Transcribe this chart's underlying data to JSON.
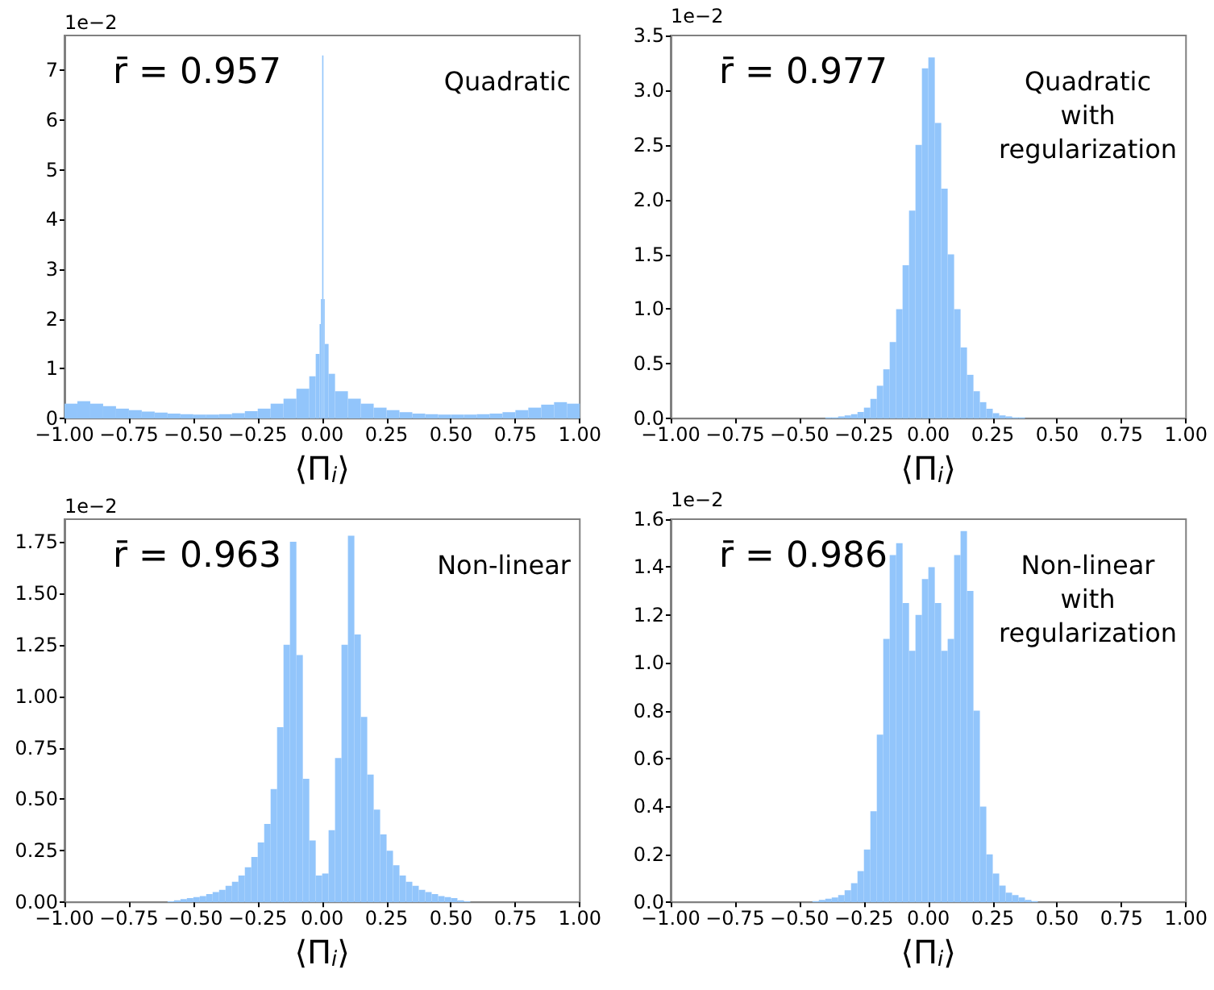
{
  "chart_data": [
    {
      "type": "histogram",
      "annotations": [
        "r̄ = 0.957",
        "Quadratic"
      ],
      "xlabel": "⟨Π$_{i}$⟩",
      "ylabel": "1e−2",
      "color": "#92c5fb",
      "bins": [
        -1,
        -0.95,
        -0.9,
        -0.85,
        -0.8,
        -0.75,
        -0.7,
        -0.65,
        -0.6,
        -0.55,
        -0.5,
        -0.45,
        -0.4,
        -0.35,
        -0.3,
        -0.25,
        -0.2,
        -0.15,
        -0.1,
        -0.05,
        -0.025,
        -0.01,
        -0.005,
        0,
        0.005,
        0.01,
        0.025,
        0.05,
        0.1,
        0.15,
        0.2,
        0.25,
        0.3,
        0.35,
        0.4,
        0.45,
        0.5,
        0.55,
        0.6,
        0.65,
        0.7,
        0.75,
        0.8,
        0.85,
        0.9,
        0.95,
        1
      ],
      "values": [
        0.3,
        0.35,
        0.3,
        0.25,
        0.2,
        0.17,
        0.14,
        0.12,
        0.1,
        0.09,
        0.08,
        0.08,
        0.09,
        0.11,
        0.15,
        0.2,
        0.3,
        0.4,
        0.6,
        0.85,
        1.3,
        1.9,
        2.4,
        7.3,
        2.4,
        1.5,
        0.9,
        0.55,
        0.4,
        0.3,
        0.22,
        0.17,
        0.13,
        0.1,
        0.09,
        0.08,
        0.08,
        0.08,
        0.09,
        0.1,
        0.13,
        0.17,
        0.22,
        0.28,
        0.33,
        0.3
      ],
      "xlim": [
        -1,
        1
      ],
      "xticks": [
        {
          "value": -1,
          "label": "−1.00"
        },
        {
          "value": -0.75,
          "label": "−0.75"
        },
        {
          "value": -0.5,
          "label": "−0.50"
        },
        {
          "value": -0.25,
          "label": "−0.25"
        },
        {
          "value": 0,
          "label": "0.00"
        },
        {
          "value": 0.25,
          "label": "0.25"
        },
        {
          "value": 0.5,
          "label": "0.50"
        },
        {
          "value": 0.75,
          "label": "0.75"
        },
        {
          "value": 1,
          "label": "1.00"
        }
      ],
      "ylim": [
        0,
        7.7
      ],
      "yticks": [
        0,
        1,
        2,
        3,
        4,
        5,
        6,
        7
      ],
      "grid": false
    },
    {
      "type": "histogram",
      "annotations": [
        "r̄ = 0.977",
        "Quadratic\nwith\nregularization"
      ],
      "xlabel": "⟨Π$_{i}$⟩",
      "ylabel": "1e−2",
      "color": "#92c5fb",
      "bins": [
        -0.4,
        -0.375,
        -0.35,
        -0.325,
        -0.3,
        -0.275,
        -0.25,
        -0.225,
        -0.2,
        -0.175,
        -0.15,
        -0.125,
        -0.1,
        -0.075,
        -0.05,
        -0.025,
        0,
        0.025,
        0.05,
        0.075,
        0.1,
        0.125,
        0.15,
        0.175,
        0.2,
        0.225,
        0.25,
        0.275,
        0.3,
        0.325,
        0.35,
        0.375,
        0.4
      ],
      "values": [
        0.01,
        0.01,
        0.02,
        0.03,
        0.04,
        0.06,
        0.1,
        0.18,
        0.3,
        0.45,
        0.7,
        1.0,
        1.4,
        1.9,
        2.5,
        3.2,
        3.3,
        2.7,
        2.1,
        1.5,
        1.0,
        0.65,
        0.4,
        0.25,
        0.15,
        0.09,
        0.05,
        0.03,
        0.02,
        0.01,
        0.01,
        0
      ],
      "xlim": [
        -1,
        1
      ],
      "xticks": [
        {
          "value": -1,
          "label": "−1.00"
        },
        {
          "value": -0.75,
          "label": "−0.75"
        },
        {
          "value": -0.5,
          "label": "−0.50"
        },
        {
          "value": -0.25,
          "label": "−0.25"
        },
        {
          "value": 0,
          "label": "0.00"
        },
        {
          "value": 0.25,
          "label": "0.25"
        },
        {
          "value": 0.5,
          "label": "0.50"
        },
        {
          "value": 0.75,
          "label": "0.75"
        },
        {
          "value": 1,
          "label": "1.00"
        }
      ],
      "ylim": [
        0,
        3.5
      ],
      "yticks": [
        {
          "value": 0,
          "label": "0.0"
        },
        {
          "value": 0.5,
          "label": "0.5"
        },
        {
          "value": 1,
          "label": "1.0"
        },
        {
          "value": 1.5,
          "label": "1.5"
        },
        {
          "value": 2,
          "label": "2.0"
        },
        {
          "value": 2.5,
          "label": "2.5"
        },
        {
          "value": 3,
          "label": "3.0"
        },
        {
          "value": 3.5,
          "label": "3.5"
        }
      ],
      "grid": false
    },
    {
      "type": "histogram",
      "annotations": [
        "r̄ = 0.963",
        "Non-linear"
      ],
      "xlabel": "⟨Π$_{i}$⟩",
      "ylabel": "1e−2",
      "color": "#92c5fb",
      "bins": [
        -0.6,
        -0.575,
        -0.55,
        -0.525,
        -0.5,
        -0.475,
        -0.45,
        -0.425,
        -0.4,
        -0.375,
        -0.35,
        -0.325,
        -0.3,
        -0.275,
        -0.25,
        -0.225,
        -0.2,
        -0.175,
        -0.15,
        -0.125,
        -0.1,
        -0.075,
        -0.05,
        -0.025,
        0,
        0.025,
        0.05,
        0.075,
        0.1,
        0.125,
        0.15,
        0.175,
        0.2,
        0.225,
        0.25,
        0.275,
        0.3,
        0.325,
        0.35,
        0.375,
        0.4,
        0.425,
        0.45,
        0.475,
        0.5,
        0.525,
        0.55,
        0.575,
        0.6
      ],
      "values": [
        0.005,
        0.01,
        0.015,
        0.02,
        0.025,
        0.03,
        0.04,
        0.05,
        0.06,
        0.08,
        0.1,
        0.13,
        0.17,
        0.22,
        0.29,
        0.38,
        0.55,
        0.85,
        1.25,
        1.75,
        1.2,
        0.6,
        0.3,
        0.13,
        0.14,
        0.35,
        0.7,
        1.25,
        1.78,
        1.3,
        0.9,
        0.62,
        0.45,
        0.33,
        0.25,
        0.18,
        0.13,
        0.1,
        0.08,
        0.06,
        0.05,
        0.04,
        0.03,
        0.025,
        0.02,
        0.01,
        0.005,
        0
      ],
      "xlim": [
        -1,
        1
      ],
      "xticks": [
        {
          "value": -1,
          "label": "−1.00"
        },
        {
          "value": -0.75,
          "label": "−0.75"
        },
        {
          "value": -0.5,
          "label": "−0.50"
        },
        {
          "value": -0.25,
          "label": "−0.25"
        },
        {
          "value": 0,
          "label": "0.00"
        },
        {
          "value": 0.25,
          "label": "0.25"
        },
        {
          "value": 0.5,
          "label": "0.50"
        },
        {
          "value": 0.75,
          "label": "0.75"
        },
        {
          "value": 1,
          "label": "1.00"
        }
      ],
      "ylim": [
        0,
        1.86
      ],
      "yticks": [
        {
          "value": 0,
          "label": "0.00"
        },
        {
          "value": 0.25,
          "label": "0.25"
        },
        {
          "value": 0.5,
          "label": "0.50"
        },
        {
          "value": 0.75,
          "label": "0.75"
        },
        {
          "value": 1,
          "label": "1.00"
        },
        {
          "value": 1.25,
          "label": "1.25"
        },
        {
          "value": 1.5,
          "label": "1.50"
        },
        {
          "value": 1.75,
          "label": "1.75"
        }
      ],
      "grid": false
    },
    {
      "type": "histogram",
      "annotations": [
        "r̄ = 0.986",
        "Non-linear\nwith\nregularization"
      ],
      "xlabel": "⟨Π$_{i}$⟩",
      "ylabel": "1e−2",
      "color": "#92c5fb",
      "bins": [
        -0.45,
        -0.425,
        -0.4,
        -0.375,
        -0.35,
        -0.325,
        -0.3,
        -0.275,
        -0.25,
        -0.225,
        -0.2,
        -0.175,
        -0.15,
        -0.125,
        -0.1,
        -0.075,
        -0.05,
        -0.025,
        0,
        0.025,
        0.05,
        0.075,
        0.1,
        0.125,
        0.15,
        0.175,
        0.2,
        0.225,
        0.25,
        0.275,
        0.3,
        0.325,
        0.35,
        0.375,
        0.4,
        0.425,
        0.45
      ],
      "values": [
        0.005,
        0.01,
        0.015,
        0.02,
        0.03,
        0.05,
        0.08,
        0.13,
        0.22,
        0.38,
        0.7,
        1.1,
        1.45,
        1.5,
        1.25,
        1.05,
        1.2,
        1.35,
        1.4,
        1.25,
        1.05,
        1.1,
        1.45,
        1.55,
        1.3,
        0.8,
        0.4,
        0.2,
        0.12,
        0.07,
        0.04,
        0.03,
        0.02,
        0.01,
        0.005,
        0
      ],
      "xlim": [
        -1,
        1
      ],
      "xticks": [
        {
          "value": -1,
          "label": "−1.00"
        },
        {
          "value": -0.75,
          "label": "−0.75"
        },
        {
          "value": -0.5,
          "label": "−0.50"
        },
        {
          "value": -0.25,
          "label": "−0.25"
        },
        {
          "value": 0,
          "label": "0.00"
        },
        {
          "value": 0.25,
          "label": "0.25"
        },
        {
          "value": 0.5,
          "label": "0.50"
        },
        {
          "value": 0.75,
          "label": "0.75"
        },
        {
          "value": 1,
          "label": "1.00"
        }
      ],
      "ylim": [
        0,
        1.6
      ],
      "yticks": [
        {
          "value": 0,
          "label": "0.0"
        },
        {
          "value": 0.2,
          "label": "0.2"
        },
        {
          "value": 0.4,
          "label": "0.4"
        },
        {
          "value": 0.6,
          "label": "0.6"
        },
        {
          "value": 0.8,
          "label": "0.8"
        },
        {
          "value": 1,
          "label": "1.0"
        },
        {
          "value": 1.2,
          "label": "1.2"
        },
        {
          "value": 1.4,
          "label": "1.4"
        },
        {
          "value": 1.6,
          "label": "1.6"
        }
      ],
      "grid": false
    }
  ]
}
